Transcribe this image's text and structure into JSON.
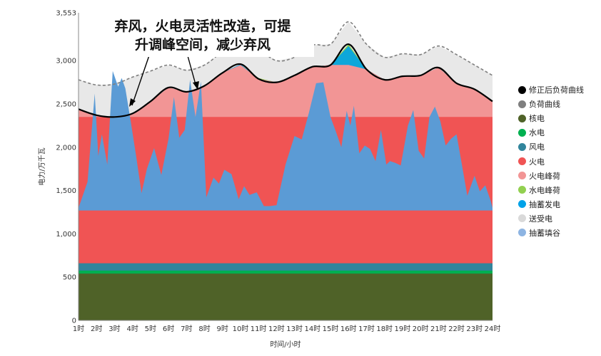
{
  "chart_data": {
    "type": "area",
    "title": "",
    "xlabel": "时间/小时",
    "ylabel": "电力/万千瓦",
    "ylim": [
      0,
      3553
    ],
    "y_ticks": [
      0,
      500,
      1000,
      1500,
      2000,
      2500,
      3000,
      3553
    ],
    "y_tick_labels": [
      "0",
      "500",
      "1,000",
      "1,500",
      "2,000",
      "2,500",
      "3,000",
      "3,553"
    ],
    "x_tick_labels": [
      "1时",
      "2时",
      "3时",
      "4时",
      "5时",
      "6时",
      "7时",
      "8时",
      "9时",
      "10时",
      "11时",
      "12时",
      "13时",
      "14时",
      "15时",
      "16时",
      "17时",
      "18时",
      "19时",
      "20时",
      "21时",
      "22时",
      "23时",
      "24时"
    ],
    "annotation": {
      "text_line1": "弃风，火电灵活性改造，可提",
      "text_line2": "升调峰空间，减少弃风"
    },
    "legend": [
      {
        "name": "修正后负荷曲线",
        "color": "#000000"
      },
      {
        "name": "负荷曲线",
        "color": "#7f7f7f"
      },
      {
        "name": "核电",
        "color": "#4f6228"
      },
      {
        "name": "水电",
        "color": "#00b050"
      },
      {
        "name": "风电",
        "color": "#31859c"
      },
      {
        "name": "火电",
        "color": "#f05454"
      },
      {
        "name": "火电峰荷",
        "color": "#f29595"
      },
      {
        "name": "水电峰荷",
        "color": "#92d050"
      },
      {
        "name": "抽蓄发电",
        "color": "#00a2e8"
      },
      {
        "name": "送受电",
        "color": "#d9d9d9"
      },
      {
        "name": "抽蓄填谷",
        "color": "#8db4e2"
      }
    ],
    "series": {
      "load_x": [
        1,
        2,
        3,
        4,
        5,
        6,
        7,
        8,
        9,
        10,
        11,
        12,
        13,
        14,
        15,
        16,
        17,
        18,
        19,
        20,
        21,
        22,
        23,
        24
      ],
      "corrected_load": [
        2440,
        2370,
        2350,
        2390,
        2530,
        2690,
        2640,
        2710,
        2860,
        2960,
        2790,
        2750,
        2830,
        2930,
        2950,
        3190,
        2900,
        2780,
        2820,
        2830,
        2920,
        2740,
        2670,
        2530
      ],
      "load_curve": [
        2780,
        2720,
        2730,
        2810,
        2880,
        2950,
        2890,
        2950,
        3100,
        3190,
        3130,
        3000,
        3040,
        3180,
        3190,
        3450,
        3190,
        3040,
        3080,
        3070,
        3170,
        3070,
        2950,
        2830
      ],
      "nuclear": 540,
      "hydro": 575,
      "wind_base": 600,
      "thermal": [
        1270,
        1270,
        1270,
        1270,
        1270,
        1270,
        1270,
        1270,
        1270,
        1270,
        1270,
        1270,
        1270,
        1270,
        1270,
        1270,
        1270,
        1270,
        1270,
        1270,
        1270,
        1270,
        1270,
        1270
      ],
      "thermal_peak_ceiling": 2350,
      "hydro_peak": [
        0,
        0,
        0,
        0,
        0,
        0,
        0,
        0,
        0,
        2960,
        2800,
        0,
        0,
        2930,
        2950,
        3100,
        2900,
        0,
        0,
        0,
        2920,
        0,
        0,
        0
      ],
      "pumped_gen_peak": 3170,
      "wind_x": [
        1.0,
        1.5,
        1.9,
        2.1,
        2.3,
        2.6,
        2.9,
        3.2,
        3.4,
        3.6,
        3.9,
        4.2,
        4.5,
        4.8,
        5.2,
        5.6,
        6.0,
        6.3,
        6.6,
        6.9,
        7.2,
        7.5,
        7.8,
        8.1,
        8.5,
        8.8,
        9.1,
        9.5,
        9.9,
        10.2,
        10.5,
        10.9,
        11.3,
        11.6,
        12.0,
        12.5,
        13.0,
        13.4,
        13.8,
        14.2,
        14.6,
        15.0,
        15.3,
        15.6,
        15.9,
        16.1,
        16.3,
        16.6,
        16.9,
        17.2,
        17.5,
        17.8,
        18.1,
        18.3,
        18.6,
        18.9,
        19.3,
        19.6,
        19.9,
        20.2,
        20.5,
        20.8,
        21.1,
        21.4,
        21.7,
        22.0,
        22.3,
        22.6,
        23.0,
        23.3,
        23.6,
        23.9,
        24.0
      ],
      "wind_top": [
        1300,
        1600,
        2620,
        1900,
        2150,
        1800,
        2880,
        2700,
        2800,
        2680,
        2300,
        1900,
        1470,
        1750,
        1990,
        1680,
        2100,
        2580,
        2110,
        2200,
        2780,
        2350,
        2760,
        1420,
        1650,
        1580,
        1740,
        1690,
        1400,
        1550,
        1450,
        1480,
        1320,
        1320,
        1330,
        1800,
        2130,
        2090,
        2400,
        2740,
        2750,
        2350,
        2180,
        2000,
        2420,
        2250,
        2480,
        1930,
        2020,
        1980,
        1840,
        2200,
        1800,
        1840,
        1820,
        1790,
        2250,
        2430,
        1960,
        1870,
        2350,
        2470,
        2300,
        2020,
        2100,
        2150,
        1800,
        1440,
        1670,
        1490,
        1560,
        1380,
        1300
      ]
    }
  }
}
